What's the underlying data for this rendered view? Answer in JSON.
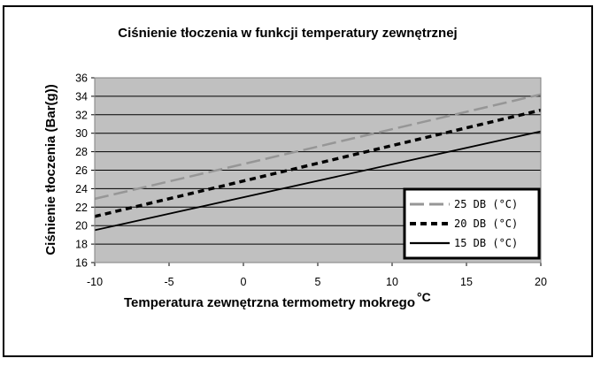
{
  "chart_data": {
    "type": "line",
    "title": "Ciśnienie tłoczenia w funkcji temperatury zewnętrznej",
    "xlabel": "Temperatura zewnętrzna termometry mokrego",
    "xlabel_unit": "°C",
    "ylabel": "Ciśnienie tłoczenia (Bar(g))",
    "xlim": [
      -10,
      20
    ],
    "ylim": [
      16,
      36
    ],
    "xticks": [
      "-10",
      "-5",
      "0",
      "5",
      "10",
      "15",
      "20"
    ],
    "yticks": [
      "16",
      "18",
      "20",
      "22",
      "24",
      "26",
      "28",
      "30",
      "32",
      "34",
      "36"
    ],
    "grid": "horizontal",
    "legend_position": "bottom-right",
    "plot_background": "#c0c0c0",
    "series": [
      {
        "name": "25 DB (°C)",
        "color": "#969696",
        "dash": "long-dash",
        "x": [
          -10,
          20
        ],
        "y": [
          22.9,
          34.2
        ]
      },
      {
        "name": "20 DB (°C)",
        "color": "#000000",
        "dash": "short-dash",
        "x": [
          -10,
          20
        ],
        "y": [
          21.0,
          32.5
        ]
      },
      {
        "name": "15 DB (°C)",
        "color": "#000000",
        "dash": "solid",
        "x": [
          -10,
          20
        ],
        "y": [
          19.5,
          30.2
        ]
      }
    ]
  }
}
